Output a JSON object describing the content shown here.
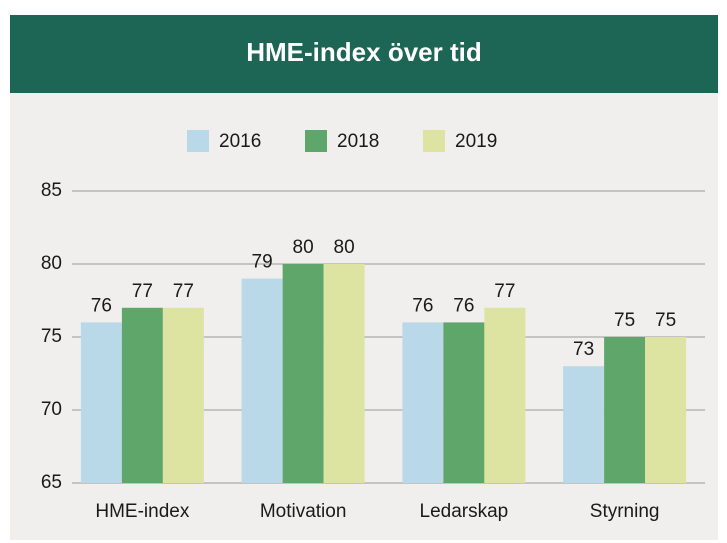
{
  "chart_data": {
    "type": "bar",
    "title": "HME-index över tid",
    "categories": [
      "HME-index",
      "Motivation",
      "Ledarskap",
      "Styrning"
    ],
    "series": [
      {
        "name": "2016",
        "color": "#b9d9e8",
        "values": [
          76,
          79,
          76,
          73
        ]
      },
      {
        "name": "2018",
        "color": "#5ea66a",
        "values": [
          77,
          80,
          76,
          75
        ]
      },
      {
        "name": "2019",
        "color": "#dde4a2",
        "values": [
          77,
          80,
          77,
          75
        ]
      }
    ],
    "ylim": [
      65,
      85
    ],
    "yticks": [
      65,
      70,
      75,
      80,
      85
    ],
    "grid": true,
    "legend": "top"
  }
}
